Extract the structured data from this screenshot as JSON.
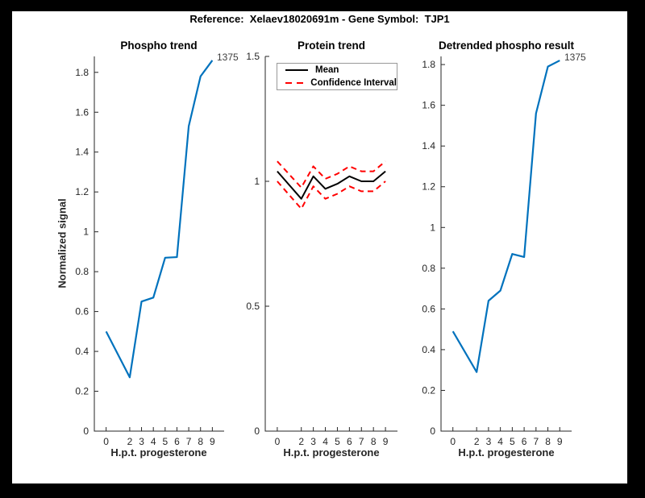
{
  "figure": {
    "title": "Reference:  Xelaev18020691m - Gene Symbol:  TJP1",
    "background": "#000000",
    "canvas_color": "#ffffff"
  },
  "axis_style": {
    "line_color": "#262626",
    "tick_label_color": "#262626",
    "end_label_color": "#3d3d3d",
    "blue": "#0072BD",
    "red": "#FF0000",
    "black": "#000000"
  },
  "chart_data": [
    {
      "type": "line",
      "title": "Phospho trend",
      "xlabel": "H.p.t. progesterone",
      "ylabel": "Normalized signal",
      "x": [
        0,
        2,
        3,
        4,
        5,
        6,
        7,
        8,
        9
      ],
      "xticks": [
        0,
        2,
        3,
        4,
        5,
        6,
        7,
        8,
        9
      ],
      "yticks": [
        0,
        0.2,
        0.4,
        0.6,
        0.8,
        1,
        1.2,
        1.4,
        1.6,
        1.8
      ],
      "xlim": [
        -1,
        10
      ],
      "ylim": [
        0,
        1.88
      ],
      "grid": false,
      "legend": null,
      "end_label": "1375",
      "series": [
        {
          "name": "phospho-trend",
          "color": "#0072BD",
          "width": 2.2,
          "dash": null,
          "values": [
            0.5,
            0.27,
            0.65,
            0.67,
            0.87,
            0.873,
            1.53,
            1.78,
            1.86
          ]
        }
      ]
    },
    {
      "type": "line",
      "title": "Protein trend",
      "xlabel": "H.p.t. progesterone",
      "ylabel": "",
      "x": [
        0,
        2,
        3,
        4,
        5,
        6,
        7,
        8,
        9
      ],
      "xticks": [
        0,
        2,
        3,
        4,
        5,
        6,
        7,
        8,
        9
      ],
      "yticks": [
        0,
        0.5,
        1,
        1.5
      ],
      "xlim": [
        -1,
        10
      ],
      "ylim": [
        0,
        1.5
      ],
      "grid": false,
      "end_label": null,
      "legend": {
        "position": "northwest",
        "entries": [
          {
            "label": "Mean",
            "color": "#000000",
            "dash": false
          },
          {
            "label": "Confidence Interval",
            "color": "#FF0000",
            "dash": true
          }
        ]
      },
      "series": [
        {
          "name": "confidence-upper",
          "color": "#FF0000",
          "width": 2,
          "dash": "7 5",
          "values": [
            1.08,
            0.975,
            1.06,
            1.01,
            1.03,
            1.06,
            1.04,
            1.04,
            1.08
          ]
        },
        {
          "name": "confidence-lower",
          "color": "#FF0000",
          "width": 2,
          "dash": "7 5",
          "values": [
            1.0,
            0.89,
            0.98,
            0.93,
            0.95,
            0.98,
            0.96,
            0.96,
            1.0
          ]
        },
        {
          "name": "mean",
          "color": "#000000",
          "width": 2,
          "dash": null,
          "values": [
            1.04,
            0.93,
            1.02,
            0.97,
            0.99,
            1.02,
            1.0,
            1.0,
            1.04
          ]
        }
      ]
    },
    {
      "type": "line",
      "title": "Detrended phospho result",
      "xlabel": "H.p.t. progesterone",
      "ylabel": "",
      "x": [
        0,
        2,
        3,
        4,
        5,
        6,
        7,
        8,
        9
      ],
      "xticks": [
        0,
        2,
        3,
        4,
        5,
        6,
        7,
        8,
        9
      ],
      "yticks": [
        0,
        0.2,
        0.4,
        0.6,
        0.8,
        1,
        1.2,
        1.4,
        1.6,
        1.8
      ],
      "xlim": [
        -1,
        10
      ],
      "ylim": [
        0,
        1.84
      ],
      "grid": false,
      "legend": null,
      "end_label": "1375",
      "series": [
        {
          "name": "detrended-phospho",
          "color": "#0072BD",
          "width": 2.2,
          "dash": null,
          "values": [
            0.49,
            0.29,
            0.64,
            0.69,
            0.87,
            0.855,
            1.56,
            1.79,
            1.82
          ]
        }
      ]
    }
  ]
}
